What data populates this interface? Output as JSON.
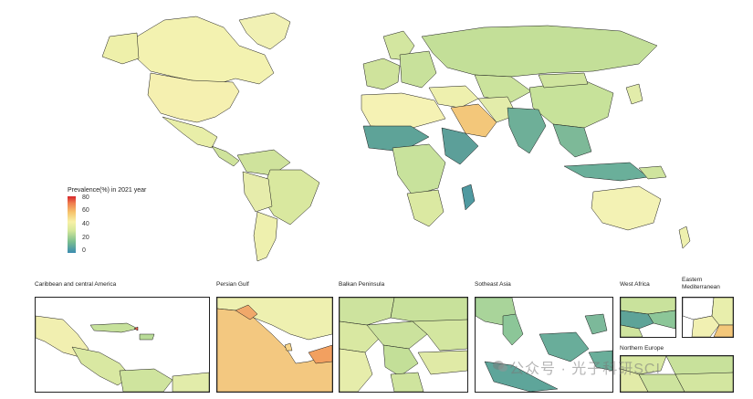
{
  "legend": {
    "title": "Prevalence(%) in 2021 year",
    "ticks": [
      "80",
      "60",
      "40",
      "20",
      "0"
    ],
    "colors": [
      "#d7262b",
      "#f6c36c",
      "#f7f1a6",
      "#7cbf8f",
      "#3b8cb0"
    ]
  },
  "insets": {
    "caribbean": "Caribbean and central America",
    "persian_gulf": "Persian Gulf",
    "balkan": "Balkan Peninsula",
    "southeast_asia": "Sotheast Asia",
    "west_africa": "West Africa",
    "eastern_med": "Eastern Mediterranean",
    "northern_europe": "Northern Europe"
  },
  "watermark": "公众号 · 光子科研SCI"
}
